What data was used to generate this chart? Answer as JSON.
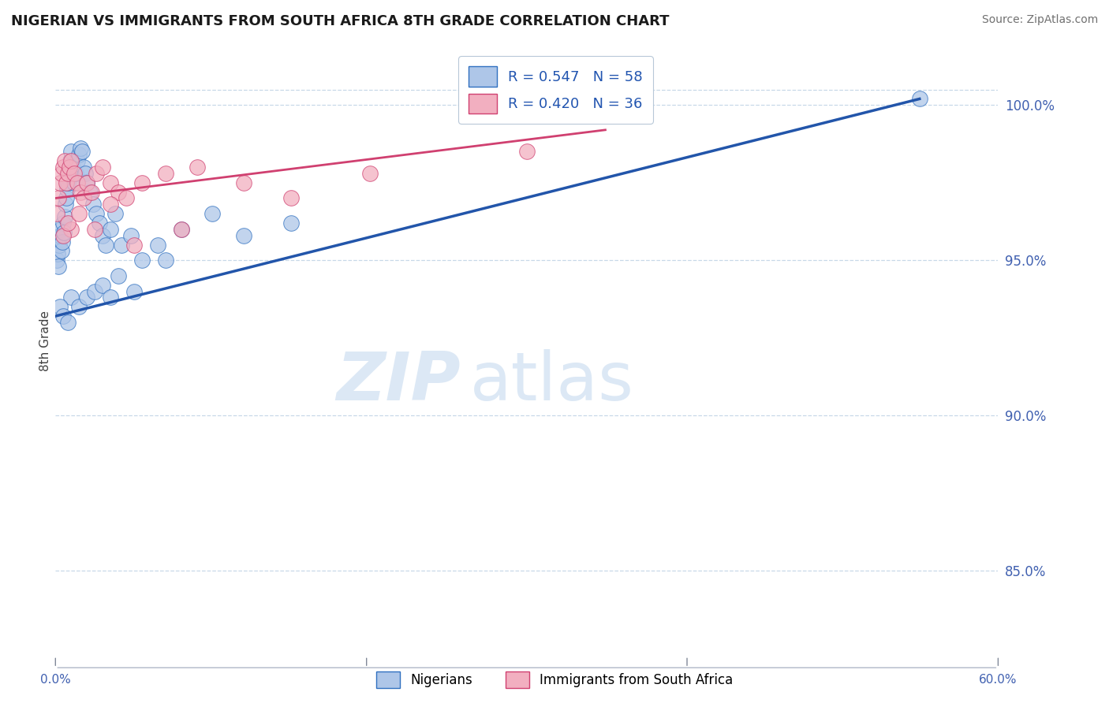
{
  "title": "NIGERIAN VS IMMIGRANTS FROM SOUTH AFRICA 8TH GRADE CORRELATION CHART",
  "source": "Source: ZipAtlas.com",
  "ylabel": "8th Grade",
  "xlim": [
    0.0,
    60.0
  ],
  "ylim": [
    83.0,
    101.8
  ],
  "yticks": [
    85.0,
    90.0,
    95.0,
    100.0
  ],
  "blue_R": 0.547,
  "blue_N": 58,
  "pink_R": 0.42,
  "pink_N": 36,
  "legend_entries": [
    "Nigerians",
    "Immigrants from South Africa"
  ],
  "blue_color": "#aec6e8",
  "pink_color": "#f2afc0",
  "blue_edge_color": "#3070c0",
  "pink_edge_color": "#d04070",
  "blue_line_color": "#2255aa",
  "pink_line_color": "#d04070",
  "blue_trend_x0": 0.0,
  "blue_trend_y0": 93.2,
  "blue_trend_x1": 55.0,
  "blue_trend_y1": 100.2,
  "pink_trend_x0": 0.0,
  "pink_trend_y0": 97.0,
  "pink_trend_x1": 35.0,
  "pink_trend_y1": 99.2,
  "blue_dots_x": [
    0.1,
    0.15,
    0.2,
    0.25,
    0.3,
    0.35,
    0.4,
    0.45,
    0.5,
    0.55,
    0.6,
    0.65,
    0.7,
    0.75,
    0.8,
    0.85,
    0.9,
    0.95,
    1.0,
    1.1,
    1.2,
    1.3,
    1.4,
    1.5,
    1.6,
    1.7,
    1.8,
    1.9,
    2.0,
    2.2,
    2.4,
    2.6,
    2.8,
    3.0,
    3.2,
    3.5,
    3.8,
    4.2,
    4.8,
    5.5,
    6.5,
    8.0,
    10.0,
    12.0,
    15.0,
    55.0,
    1.0,
    0.3,
    0.5,
    0.8,
    1.5,
    2.0,
    2.5,
    3.0,
    3.5,
    4.0,
    5.0,
    7.0
  ],
  "blue_dots_y": [
    95.0,
    95.2,
    94.8,
    95.5,
    95.8,
    96.0,
    95.3,
    95.6,
    96.2,
    95.9,
    96.4,
    96.8,
    97.0,
    97.3,
    97.5,
    97.8,
    98.0,
    98.2,
    98.5,
    98.0,
    97.5,
    97.8,
    98.2,
    98.4,
    98.6,
    98.5,
    98.0,
    97.8,
    97.5,
    97.2,
    96.8,
    96.5,
    96.2,
    95.8,
    95.5,
    96.0,
    96.5,
    95.5,
    95.8,
    95.0,
    95.5,
    96.0,
    96.5,
    95.8,
    96.2,
    100.2,
    93.8,
    93.5,
    93.2,
    93.0,
    93.5,
    93.8,
    94.0,
    94.2,
    93.8,
    94.5,
    94.0,
    95.0
  ],
  "pink_dots_x": [
    0.1,
    0.2,
    0.3,
    0.4,
    0.5,
    0.6,
    0.7,
    0.8,
    0.9,
    1.0,
    1.2,
    1.4,
    1.6,
    1.8,
    2.0,
    2.3,
    2.6,
    3.0,
    3.5,
    4.0,
    4.5,
    5.5,
    7.0,
    9.0,
    12.0,
    15.0,
    20.0,
    1.0,
    0.5,
    0.8,
    1.5,
    2.5,
    3.5,
    5.0,
    8.0,
    30.0
  ],
  "pink_dots_y": [
    96.5,
    97.0,
    97.5,
    97.8,
    98.0,
    98.2,
    97.5,
    97.8,
    98.0,
    98.2,
    97.8,
    97.5,
    97.2,
    97.0,
    97.5,
    97.2,
    97.8,
    98.0,
    97.5,
    97.2,
    97.0,
    97.5,
    97.8,
    98.0,
    97.5,
    97.0,
    97.8,
    96.0,
    95.8,
    96.2,
    96.5,
    96.0,
    96.8,
    95.5,
    96.0,
    98.5
  ],
  "watermark_zip": "ZIP",
  "watermark_atlas": "atlas",
  "watermark_color": "#dce8f5",
  "background_color": "#ffffff",
  "grid_color": "#c8d8e8"
}
